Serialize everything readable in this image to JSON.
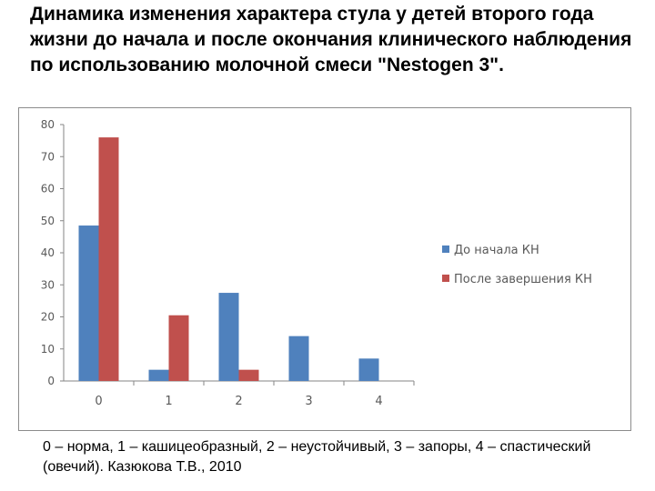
{
  "title": "Динамика изменения характера стула у детей второго года жизни до начала и после окончания клинического наблюдения по использованию молочной смеси \"Nestogen 3\".",
  "caption": "0 – норма, 1 – кашицеобразный, 2 – неустойчивый, 3 – запоры, 4 – спастический (овечий). Казюкова Т.В., 2010",
  "chart_data": {
    "type": "bar",
    "categories": [
      "0",
      "1",
      "2",
      "3",
      "4"
    ],
    "series": [
      {
        "name": "До начала КН",
        "color": "#4f81bd",
        "values": [
          48.5,
          3.5,
          27.5,
          14,
          7
        ]
      },
      {
        "name": "После завершения КН",
        "color": "#c0504d",
        "values": [
          76,
          20.5,
          3.5,
          null,
          null
        ]
      }
    ],
    "yticks": [
      "0",
      "10",
      "20",
      "30",
      "40",
      "50",
      "60",
      "70",
      "80"
    ],
    "ylim": [
      0,
      80
    ],
    "grid": false,
    "legend_position": "right"
  }
}
